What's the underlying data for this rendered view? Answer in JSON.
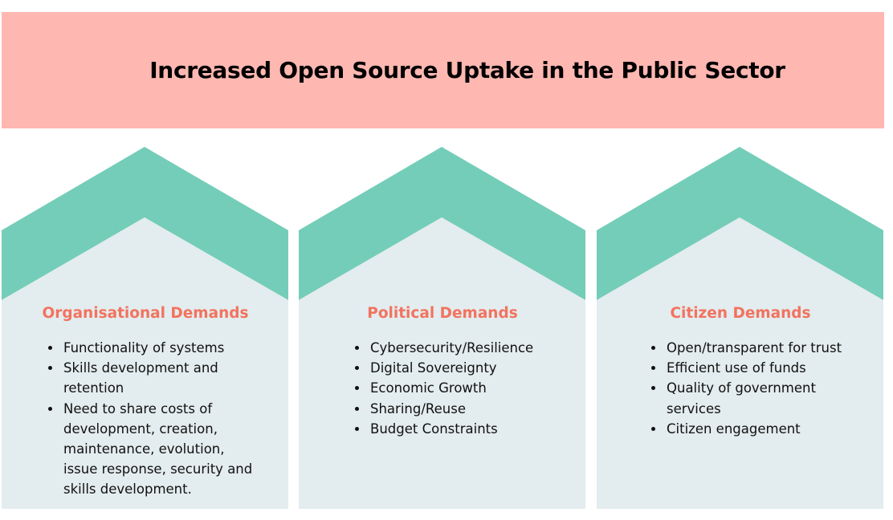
{
  "header": {
    "title": "Increased Open Source Uptake in the Public Sector"
  },
  "colors": {
    "banner": "#ffb7b1",
    "roof": "#74cdb8",
    "wall": "#e3ecee",
    "pillar_title": "#f2735f",
    "text": "#111111"
  },
  "pillars": [
    {
      "title": "Organisational Demands",
      "items": [
        "Functionality of systems",
        "Skills development and retention",
        "Need to share costs of development, creation, maintenance, evolution, issue response, security and skills development."
      ]
    },
    {
      "title": "Political Demands",
      "items": [
        "Cybersecurity/Resilience",
        "Digital Sovereignty",
        "Economic Growth",
        "Sharing/Reuse",
        "Budget Constraints"
      ]
    },
    {
      "title": "Citizen Demands",
      "items": [
        "Open/transparent for trust",
        "Efficient use of funds",
        "Quality of government services",
        "Citizen engagement"
      ]
    }
  ]
}
